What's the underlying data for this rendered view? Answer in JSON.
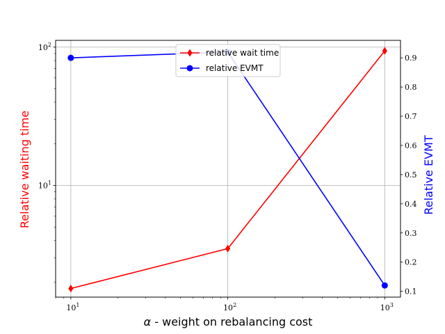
{
  "chart_data": {
    "type": "line",
    "x": [
      10,
      100,
      1000
    ],
    "xscale": "log",
    "xlim": [
      8,
      1260
    ],
    "xticks": [
      10,
      100,
      1000
    ],
    "xtick_labels": [
      {
        "base": "10",
        "exp": "1"
      },
      {
        "base": "10",
        "exp": "2"
      },
      {
        "base": "10",
        "exp": "3"
      }
    ],
    "xlabel": {
      "symbol": "α",
      "text": " - weight on rebalancing cost"
    },
    "grid": true,
    "legend_position": "top-center",
    "series": [
      {
        "name": "relative wait time",
        "axis": "left",
        "values": [
          1.8,
          3.5,
          94
        ],
        "color": "#ff0000",
        "marker": "diamond"
      },
      {
        "name": "relative EVMT",
        "axis": "right",
        "values": [
          0.9,
          0.92,
          0.12
        ],
        "color": "#0000ff",
        "marker": "circle"
      }
    ],
    "left_axis": {
      "label": "Relative waiting time",
      "scale": "log",
      "ylim": [
        1.56,
        112
      ],
      "ticks": [
        10,
        100
      ],
      "tick_labels": [
        {
          "base": "10",
          "exp": "1"
        },
        {
          "base": "10",
          "exp": "2"
        }
      ],
      "color": "#ff0000"
    },
    "right_axis": {
      "label": "Relative EVMT",
      "scale": "linear",
      "ylim": [
        0.08,
        0.96
      ],
      "ticks": [
        0.1,
        0.2,
        0.3,
        0.4,
        0.5,
        0.6,
        0.7,
        0.8,
        0.9
      ],
      "tick_labels": [
        "0.1",
        "0.2",
        "0.3",
        "0.4",
        "0.5",
        "0.6",
        "0.7",
        "0.8",
        "0.9"
      ],
      "color": "#0000ff"
    }
  }
}
